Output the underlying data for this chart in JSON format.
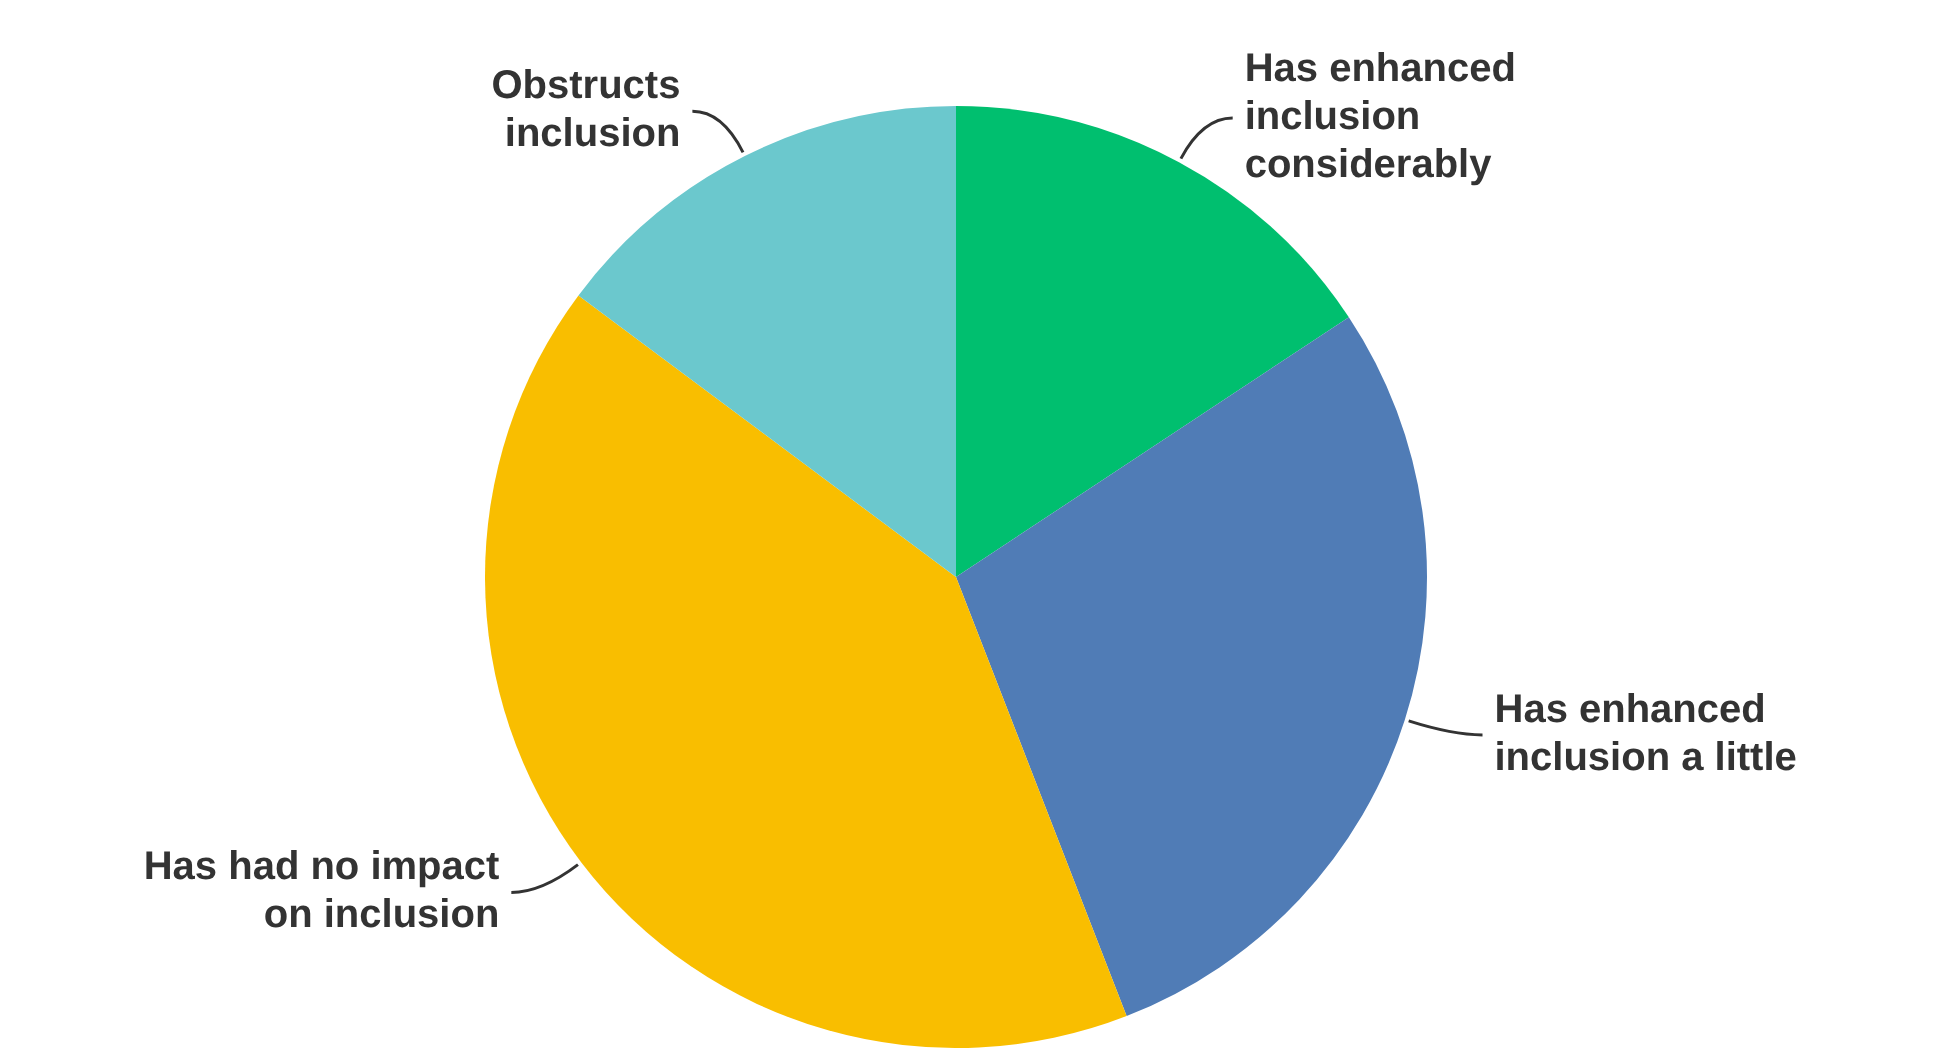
{
  "chart_data": {
    "type": "pie",
    "categories": [
      "Has enhanced inclusion considerably",
      "Has enhanced inclusion a little",
      "Has had no impact on inclusion",
      "Obstructs inclusion"
    ],
    "values": [
      15.7,
      28.4,
      41.1,
      14.8
    ],
    "colors": [
      "#00bf6f",
      "#507cb6",
      "#f9be00",
      "#6bc8cd"
    ],
    "legend": false
  }
}
